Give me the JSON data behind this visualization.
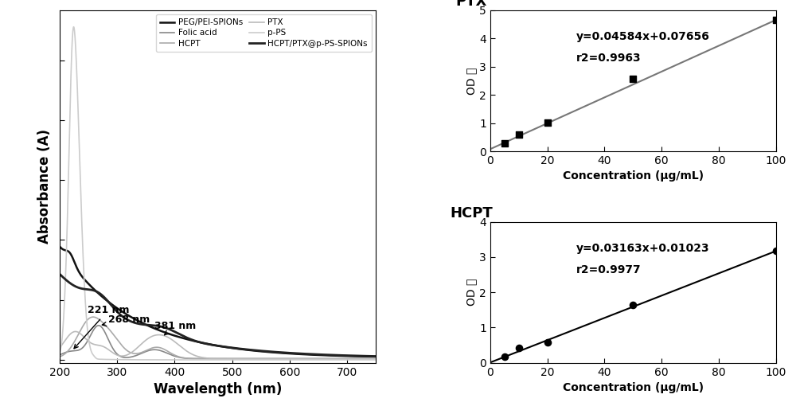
{
  "left_panel": {
    "xlabel": "Wavelength (nm)",
    "ylabel": "Absorbance (A)",
    "xlim": [
      200,
      750
    ],
    "xticks": [
      200,
      300,
      400,
      500,
      600,
      700
    ],
    "legend_entries": [
      {
        "label": "PEG/PEI-SPIONs",
        "color": "#111111",
        "lw": 1.8
      },
      {
        "label": "Folic acid",
        "color": "#888888",
        "lw": 1.2
      },
      {
        "label": "HCPT",
        "color": "#aaaaaa",
        "lw": 1.2
      },
      {
        "label": "PTX",
        "color": "#bbbbbb",
        "lw": 1.2
      },
      {
        "label": "p-PS",
        "color": "#cccccc",
        "lw": 1.2
      },
      {
        "label": "HCPT/PTX@p-PS-SPIONs",
        "color": "#222222",
        "lw": 2.0
      }
    ]
  },
  "ptx_panel": {
    "title": "PTX",
    "xlabel": "Concentration (μg/mL)",
    "ylabel": "OD 値",
    "xlim": [
      0,
      100
    ],
    "ylim": [
      0,
      5
    ],
    "yticks": [
      0,
      1,
      2,
      3,
      4,
      5
    ],
    "xticks": [
      0,
      20,
      40,
      60,
      80,
      100
    ],
    "equation": "y=0.04584x+0.07656",
    "r2": "r2=0.9963",
    "slope": 0.04584,
    "intercept": 0.07656,
    "x_data": [
      5,
      10,
      20,
      50,
      100
    ],
    "y_data": [
      0.28,
      0.58,
      1.02,
      2.57,
      4.66
    ],
    "marker": "s",
    "color": "#000000",
    "line_color": "#777777"
  },
  "hcpt_panel": {
    "title": "HCPT",
    "xlabel": "Concentration (μg/mL)",
    "ylabel": "OD 値",
    "xlim": [
      0,
      100
    ],
    "ylim": [
      0,
      4
    ],
    "yticks": [
      0,
      1,
      2,
      3,
      4
    ],
    "xticks": [
      0,
      20,
      40,
      60,
      80,
      100
    ],
    "equation": "y=0.03163x+0.01023",
    "r2": "r2=0.9977",
    "slope": 0.03163,
    "intercept": 0.01023,
    "x_data": [
      5,
      10,
      20,
      50,
      100
    ],
    "y_data": [
      0.17,
      0.42,
      0.58,
      1.65,
      3.17
    ],
    "marker": "o",
    "color": "#000000",
    "line_color": "#000000"
  }
}
